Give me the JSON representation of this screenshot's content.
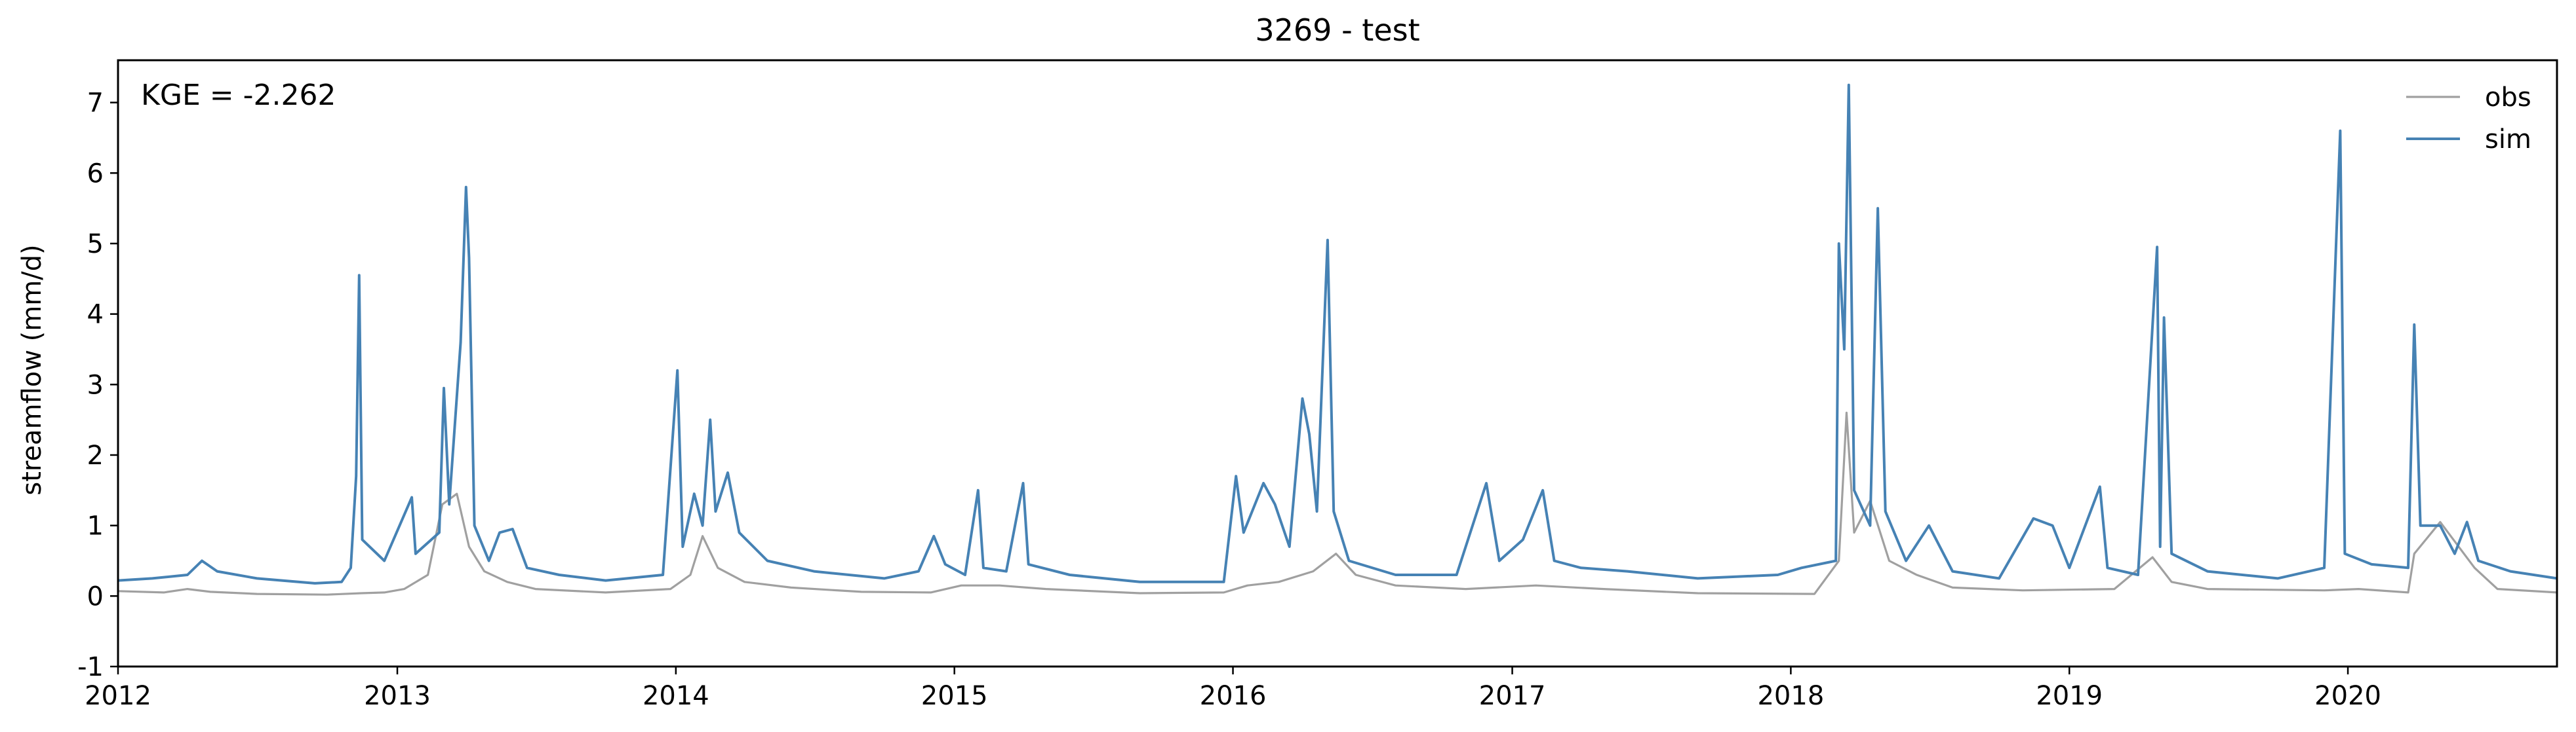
{
  "chart_data": {
    "type": "line",
    "title": "3269 - test",
    "xlabel": "",
    "ylabel": "streamflow (mm/d)",
    "annotation": "KGE = -2.262",
    "xlim": [
      "2012-01-01",
      "2020-10-01"
    ],
    "ylim": [
      -1,
      7.6
    ],
    "x_ticks": [
      "2012",
      "2013",
      "2014",
      "2015",
      "2016",
      "2017",
      "2018",
      "2019",
      "2020"
    ],
    "y_ticks": [
      "-1",
      "0",
      "1",
      "2",
      "3",
      "4",
      "5",
      "6",
      "7"
    ],
    "grid": false,
    "legend_position": "top-right",
    "series": [
      {
        "name": "obs",
        "color": "#a0a0a0",
        "points": [
          [
            "2012-01-01",
            0.07
          ],
          [
            "2012-03-01",
            0.05
          ],
          [
            "2012-04-01",
            0.1
          ],
          [
            "2012-05-01",
            0.06
          ],
          [
            "2012-07-01",
            0.03
          ],
          [
            "2012-10-01",
            0.02
          ],
          [
            "2012-11-15",
            0.04
          ],
          [
            "2012-12-15",
            0.05
          ],
          [
            "2013-01-10",
            0.1
          ],
          [
            "2013-02-10",
            0.3
          ],
          [
            "2013-03-01",
            1.3
          ],
          [
            "2013-03-20",
            1.45
          ],
          [
            "2013-04-05",
            0.7
          ],
          [
            "2013-04-25",
            0.35
          ],
          [
            "2013-05-25",
            0.2
          ],
          [
            "2013-07-01",
            0.1
          ],
          [
            "2013-10-01",
            0.05
          ],
          [
            "2013-12-25",
            0.1
          ],
          [
            "2014-01-20",
            0.3
          ],
          [
            "2014-02-05",
            0.85
          ],
          [
            "2014-02-25",
            0.4
          ],
          [
            "2014-04-01",
            0.2
          ],
          [
            "2014-06-01",
            0.12
          ],
          [
            "2014-09-01",
            0.06
          ],
          [
            "2014-12-01",
            0.05
          ],
          [
            "2015-01-10",
            0.15
          ],
          [
            "2015-03-01",
            0.15
          ],
          [
            "2015-05-01",
            0.1
          ],
          [
            "2015-09-01",
            0.04
          ],
          [
            "2015-12-20",
            0.05
          ],
          [
            "2016-01-20",
            0.15
          ],
          [
            "2016-03-01",
            0.2
          ],
          [
            "2016-04-15",
            0.35
          ],
          [
            "2016-05-15",
            0.6
          ],
          [
            "2016-06-10",
            0.3
          ],
          [
            "2016-08-01",
            0.15
          ],
          [
            "2016-11-01",
            0.1
          ],
          [
            "2017-02-01",
            0.15
          ],
          [
            "2017-05-01",
            0.1
          ],
          [
            "2017-09-01",
            0.04
          ],
          [
            "2018-02-01",
            0.03
          ],
          [
            "2018-03-05",
            0.5
          ],
          [
            "2018-03-15",
            2.6
          ],
          [
            "2018-03-25",
            0.9
          ],
          [
            "2018-04-15",
            1.35
          ],
          [
            "2018-05-10",
            0.5
          ],
          [
            "2018-06-15",
            0.3
          ],
          [
            "2018-08-01",
            0.12
          ],
          [
            "2018-11-01",
            0.08
          ],
          [
            "2019-03-01",
            0.1
          ],
          [
            "2019-04-20",
            0.55
          ],
          [
            "2019-05-15",
            0.2
          ],
          [
            "2019-07-01",
            0.1
          ],
          [
            "2019-12-01",
            0.08
          ],
          [
            "2020-01-15",
            0.1
          ],
          [
            "2020-03-20",
            0.05
          ],
          [
            "2020-03-28",
            0.6
          ],
          [
            "2020-05-01",
            1.05
          ],
          [
            "2020-06-15",
            0.4
          ],
          [
            "2020-07-15",
            0.1
          ],
          [
            "2020-10-01",
            0.05
          ]
        ]
      },
      {
        "name": "sim",
        "color": "#4682b4",
        "points": [
          [
            "2012-01-01",
            0.22
          ],
          [
            "2012-02-15",
            0.25
          ],
          [
            "2012-04-01",
            0.3
          ],
          [
            "2012-04-20",
            0.5
          ],
          [
            "2012-05-10",
            0.35
          ],
          [
            "2012-07-01",
            0.25
          ],
          [
            "2012-09-15",
            0.18
          ],
          [
            "2012-10-20",
            0.2
          ],
          [
            "2012-11-01",
            0.4
          ],
          [
            "2012-11-08",
            1.7
          ],
          [
            "2012-11-12",
            4.55
          ],
          [
            "2012-11-16",
            0.8
          ],
          [
            "2012-12-15",
            0.5
          ],
          [
            "2013-01-20",
            1.4
          ],
          [
            "2013-01-25",
            0.6
          ],
          [
            "2013-02-25",
            0.9
          ],
          [
            "2013-03-03",
            2.95
          ],
          [
            "2013-03-10",
            1.3
          ],
          [
            "2013-03-25",
            3.6
          ],
          [
            "2013-04-01",
            5.8
          ],
          [
            "2013-04-05",
            4.8
          ],
          [
            "2013-04-12",
            1.0
          ],
          [
            "2013-05-01",
            0.5
          ],
          [
            "2013-05-15",
            0.9
          ],
          [
            "2013-06-01",
            0.95
          ],
          [
            "2013-06-20",
            0.4
          ],
          [
            "2013-08-01",
            0.3
          ],
          [
            "2013-10-01",
            0.22
          ],
          [
            "2013-12-15",
            0.3
          ],
          [
            "2014-01-03",
            3.2
          ],
          [
            "2014-01-10",
            0.7
          ],
          [
            "2014-01-25",
            1.45
          ],
          [
            "2014-02-05",
            1.0
          ],
          [
            "2014-02-15",
            2.5
          ],
          [
            "2014-02-22",
            1.2
          ],
          [
            "2014-03-10",
            1.75
          ],
          [
            "2014-03-25",
            0.9
          ],
          [
            "2014-05-01",
            0.5
          ],
          [
            "2014-07-01",
            0.35
          ],
          [
            "2014-10-01",
            0.25
          ],
          [
            "2014-11-15",
            0.35
          ],
          [
            "2014-12-05",
            0.85
          ],
          [
            "2014-12-20",
            0.45
          ],
          [
            "2015-01-15",
            0.3
          ],
          [
            "2015-02-01",
            1.5
          ],
          [
            "2015-02-08",
            0.4
          ],
          [
            "2015-03-10",
            0.35
          ],
          [
            "2015-04-01",
            1.6
          ],
          [
            "2015-04-08",
            0.45
          ],
          [
            "2015-06-01",
            0.3
          ],
          [
            "2015-09-01",
            0.2
          ],
          [
            "2015-12-20",
            0.2
          ],
          [
            "2016-01-05",
            1.7
          ],
          [
            "2016-01-15",
            0.9
          ],
          [
            "2016-02-10",
            1.6
          ],
          [
            "2016-02-25",
            1.3
          ],
          [
            "2016-03-15",
            0.7
          ],
          [
            "2016-04-01",
            2.8
          ],
          [
            "2016-04-10",
            2.3
          ],
          [
            "2016-04-20",
            1.2
          ],
          [
            "2016-05-04",
            5.05
          ],
          [
            "2016-05-12",
            1.2
          ],
          [
            "2016-06-01",
            0.5
          ],
          [
            "2016-08-01",
            0.3
          ],
          [
            "2016-10-20",
            0.3
          ],
          [
            "2016-11-28",
            1.6
          ],
          [
            "2016-12-15",
            0.5
          ],
          [
            "2017-01-15",
            0.8
          ],
          [
            "2017-02-10",
            1.5
          ],
          [
            "2017-02-25",
            0.5
          ],
          [
            "2017-04-01",
            0.4
          ],
          [
            "2017-06-01",
            0.35
          ],
          [
            "2017-09-01",
            0.25
          ],
          [
            "2017-12-15",
            0.3
          ],
          [
            "2018-01-15",
            0.4
          ],
          [
            "2018-03-01",
            0.5
          ],
          [
            "2018-03-05",
            5.0
          ],
          [
            "2018-03-12",
            3.5
          ],
          [
            "2018-03-18",
            7.25
          ],
          [
            "2018-03-25",
            1.5
          ],
          [
            "2018-04-15",
            1.0
          ],
          [
            "2018-04-25",
            5.5
          ],
          [
            "2018-05-05",
            1.2
          ],
          [
            "2018-06-01",
            0.5
          ],
          [
            "2018-07-01",
            1.0
          ],
          [
            "2018-08-01",
            0.35
          ],
          [
            "2018-10-01",
            0.25
          ],
          [
            "2018-11-15",
            1.1
          ],
          [
            "2018-12-10",
            1.0
          ],
          [
            "2019-01-01",
            0.4
          ],
          [
            "2019-02-10",
            1.55
          ],
          [
            "2019-02-20",
            0.4
          ],
          [
            "2019-04-01",
            0.3
          ],
          [
            "2019-04-26",
            4.95
          ],
          [
            "2019-04-30",
            0.7
          ],
          [
            "2019-05-05",
            3.95
          ],
          [
            "2019-05-15",
            0.6
          ],
          [
            "2019-07-01",
            0.35
          ],
          [
            "2019-10-01",
            0.25
          ],
          [
            "2019-12-01",
            0.4
          ],
          [
            "2019-12-22",
            6.6
          ],
          [
            "2019-12-28",
            0.6
          ],
          [
            "2020-02-01",
            0.45
          ],
          [
            "2020-03-20",
            0.4
          ],
          [
            "2020-03-28",
            3.85
          ],
          [
            "2020-04-05",
            1.0
          ],
          [
            "2020-05-01",
            1.0
          ],
          [
            "2020-05-20",
            0.6
          ],
          [
            "2020-06-05",
            1.05
          ],
          [
            "2020-06-20",
            0.5
          ],
          [
            "2020-08-01",
            0.35
          ],
          [
            "2020-10-01",
            0.25
          ]
        ]
      }
    ]
  }
}
